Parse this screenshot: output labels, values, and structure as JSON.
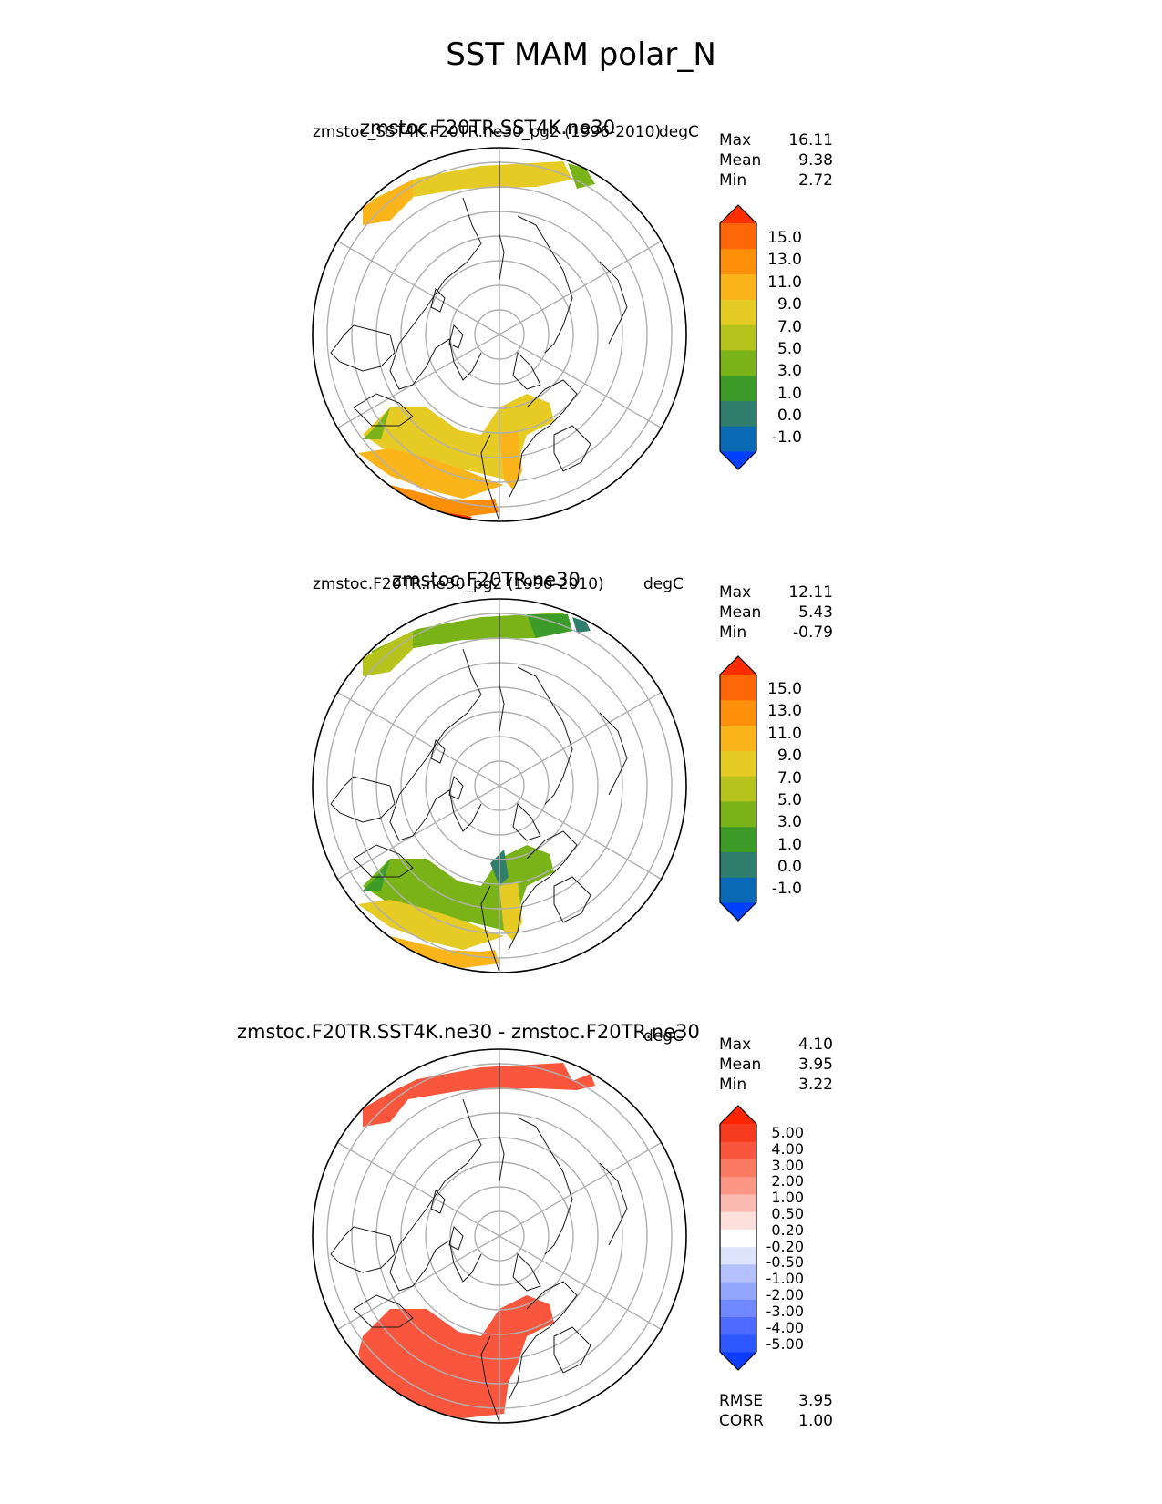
{
  "title": "SST MAM polar_N",
  "panels": [
    {
      "title": "zmstoc.F20TR.SST4K.ne30",
      "subtitle": "zmstoc_SST4K.F20TR.ne30_pg2 (1996-2010)",
      "units": "degC",
      "stats": [
        {
          "label": "Max",
          "value": "16.11"
        },
        {
          "label": "Mean",
          "value": "9.38"
        },
        {
          "label": "Min",
          "value": "2.72"
        }
      ],
      "colorbar": {
        "ticks": [
          "15.0",
          "13.0",
          "11.0",
          "9.0",
          "7.0",
          "5.0",
          "3.0",
          "1.0",
          "0.0",
          "-1.0"
        ],
        "colors": [
          "#0041ff",
          "#0a69b4",
          "#2f7f6c",
          "#3d9b2a",
          "#7ab317",
          "#b5c31c",
          "#e6cb24",
          "#fcb41b",
          "#fd8f0a",
          "#fe6708",
          "#ff2e00"
        ]
      }
    },
    {
      "title": "zmstoc.F20TR.ne30",
      "subtitle": "zmstoc.F20TR.ne30_pg2 (1996-2010)",
      "units": "degC",
      "stats": [
        {
          "label": "Max",
          "value": "12.11"
        },
        {
          "label": "Mean",
          "value": "5.43"
        },
        {
          "label": "Min",
          "value": "-0.79"
        }
      ],
      "colorbar": {
        "ticks": [
          "15.0",
          "13.0",
          "11.0",
          "9.0",
          "7.0",
          "5.0",
          "3.0",
          "1.0",
          "0.0",
          "-1.0"
        ],
        "colors": [
          "#0041ff",
          "#0a69b4",
          "#2f7f6c",
          "#3d9b2a",
          "#7ab317",
          "#b5c31c",
          "#e6cb24",
          "#fcb41b",
          "#fd8f0a",
          "#fe6708",
          "#ff2e00"
        ]
      }
    },
    {
      "title": "zmstoc.F20TR.SST4K.ne30 - zmstoc.F20TR.ne30",
      "subtitle": "",
      "units": "degC",
      "stats": [
        {
          "label": "Max",
          "value": "4.10"
        },
        {
          "label": "Mean",
          "value": "3.95"
        },
        {
          "label": "Min",
          "value": "3.22"
        }
      ],
      "colorbar": {
        "ticks": [
          "5.00",
          "4.00",
          "3.00",
          "2.00",
          "1.00",
          "0.50",
          "0.20",
          "-0.20",
          "-0.50",
          "-1.00",
          "-2.00",
          "-3.00",
          "-4.00",
          "-5.00"
        ],
        "colors": [
          "#0b3cff",
          "#2e58ff",
          "#4d6cff",
          "#6f88ff",
          "#93a6ff",
          "#b5c1ff",
          "#dde3fb",
          "#ffffff",
          "#fde0dc",
          "#fcbbb0",
          "#fc9685",
          "#fb7a64",
          "#f9563d",
          "#f63a1d",
          "#ff2500"
        ]
      },
      "extra_stats": [
        {
          "label": "RMSE",
          "value": "3.95"
        },
        {
          "label": "CORR",
          "value": "1.00"
        }
      ]
    }
  ],
  "chart_data": [
    {
      "type": "heatmap",
      "title": "zmstoc.F20TR.SST4K.ne30",
      "subtitle": "zmstoc_SST4K.F20TR.ne30_pg2 (1996-2010)",
      "projection": "north polar stereographic",
      "variable": "SST",
      "season": "MAM",
      "units": "degC",
      "max": 16.11,
      "mean": 9.38,
      "min": 2.72,
      "levels": [
        -1,
        0,
        1,
        3,
        5,
        7,
        9,
        11,
        13,
        15
      ]
    },
    {
      "type": "heatmap",
      "title": "zmstoc.F20TR.ne30",
      "subtitle": "zmstoc.F20TR.ne30_pg2 (1996-2010)",
      "projection": "north polar stereographic",
      "variable": "SST",
      "season": "MAM",
      "units": "degC",
      "max": 12.11,
      "mean": 5.43,
      "min": -0.79,
      "levels": [
        -1,
        0,
        1,
        3,
        5,
        7,
        9,
        11,
        13,
        15
      ]
    },
    {
      "type": "heatmap",
      "title": "zmstoc.F20TR.SST4K.ne30 - zmstoc.F20TR.ne30",
      "projection": "north polar stereographic",
      "variable": "SST difference",
      "season": "MAM",
      "units": "degC",
      "max": 4.1,
      "mean": 3.95,
      "min": 3.22,
      "rmse": 3.95,
      "corr": 1.0,
      "levels": [
        -5,
        -4,
        -3,
        -2,
        -1,
        -0.5,
        -0.2,
        0.2,
        0.5,
        1,
        2,
        3,
        4,
        5
      ]
    }
  ]
}
